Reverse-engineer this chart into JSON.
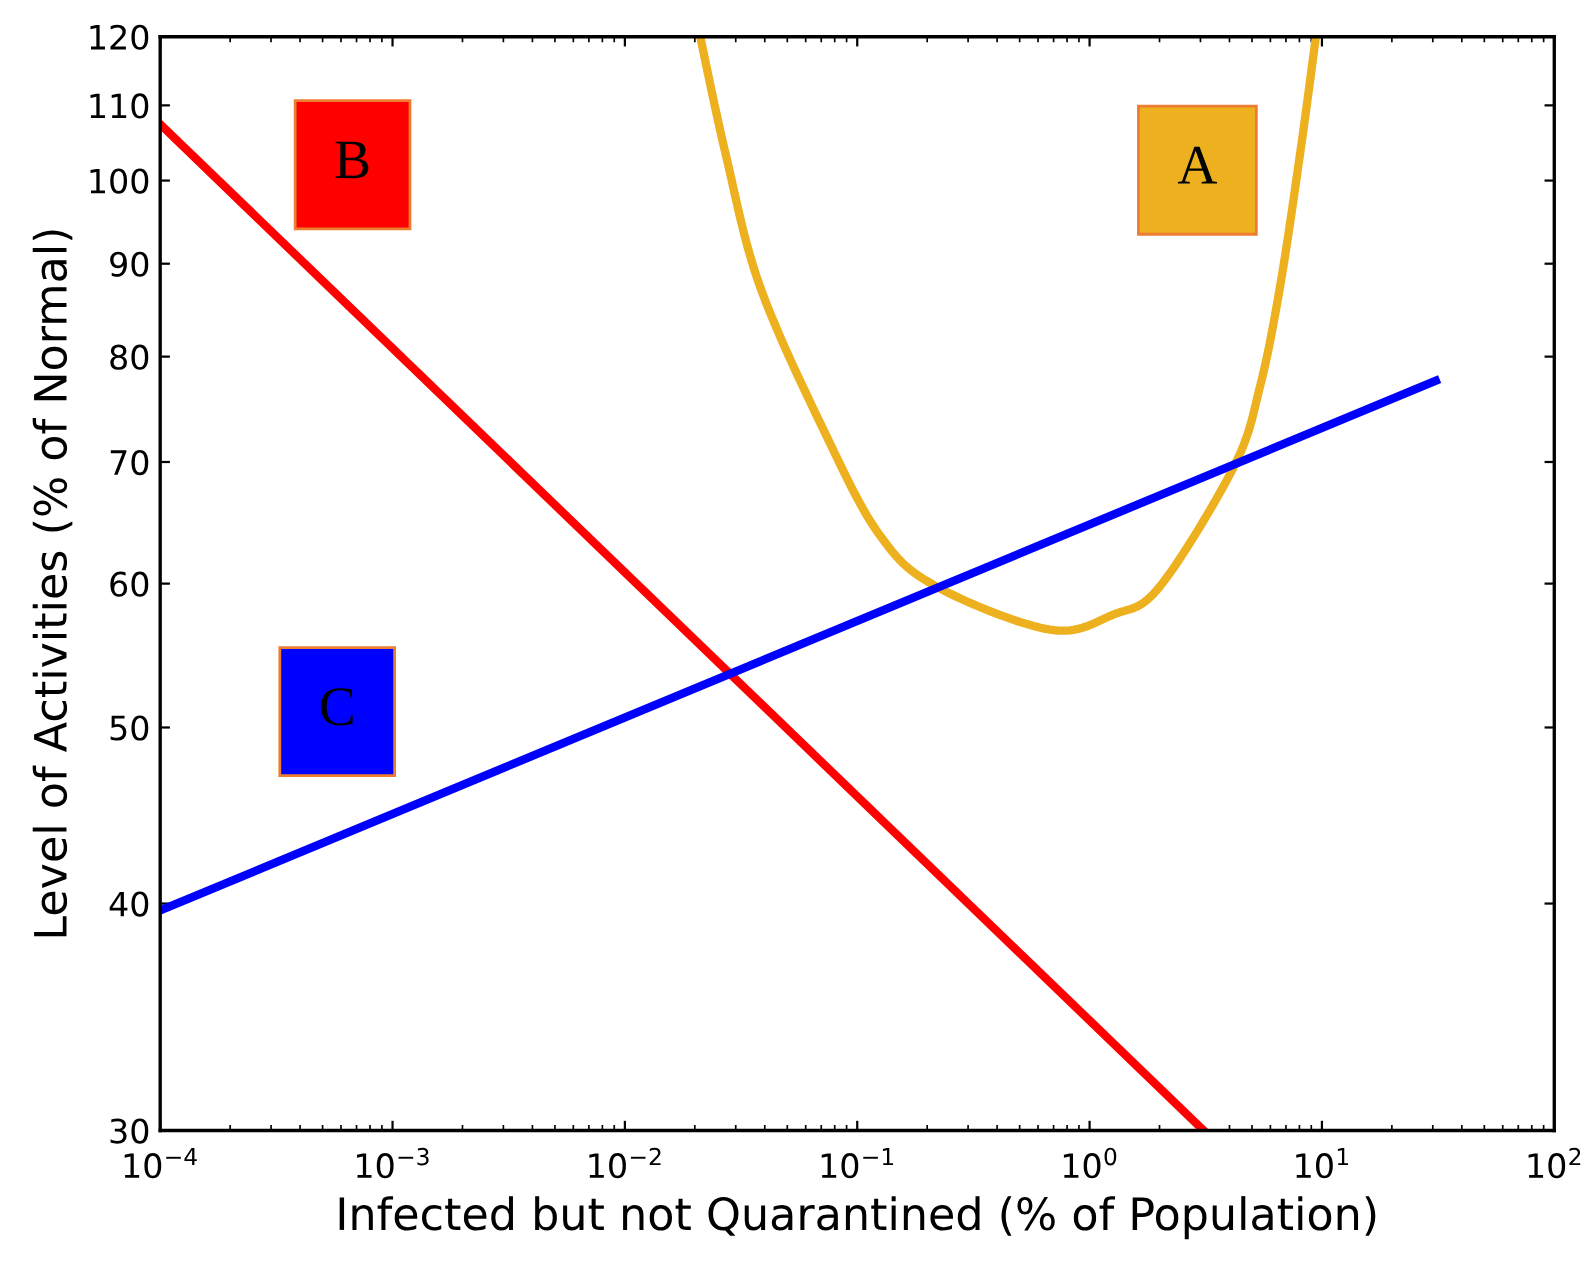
{
  "chart_data": {
    "type": "line",
    "xlabel": "Infected but not Quarantined (% of Population)",
    "ylabel": "Level of Activities (% of Normal)",
    "log": "xy",
    "grid": false,
    "legend": false,
    "marker": "none",
    "line_style": "solid",
    "xlim": [
      0.0001,
      100
    ],
    "ylim": [
      30,
      120
    ],
    "xticks": [
      {
        "value": 0.0001,
        "label": "10$^{−4}$"
      },
      {
        "value": 0.001,
        "label": "10$^{−3}$"
      },
      {
        "value": 0.01,
        "label": "10$^{−2}$"
      },
      {
        "value": 0.1,
        "label": "10$^{−1}$"
      },
      {
        "value": 1,
        "label": "10$^{0}$"
      },
      {
        "value": 10,
        "label": "10$^{1}$"
      },
      {
        "value": 100,
        "label": "10$^{2}$"
      }
    ],
    "yticks": [
      30,
      40,
      50,
      60,
      70,
      80,
      90,
      100,
      110,
      120
    ],
    "series": [
      {
        "name": "A",
        "color": "#edb120",
        "x": [
          0.0211,
          0.0272,
          0.0382,
          0.0735,
          0.125,
          0.218,
          0.676,
          1.27,
          2.01,
          4.18,
          5.41,
          6.6,
          8.04,
          9.42
        ],
        "values": [
          120,
          103.3,
          87.4,
          72.4,
          63.8,
          59.8,
          56.6,
          57.7,
          59.8,
          69.6,
          77.0,
          87.4,
          103.3,
          120
        ]
      },
      {
        "name": "B",
        "color": "#ff0000",
        "x": [
          0.0001,
          3.1
        ],
        "values": [
          107.4,
          30
        ]
      },
      {
        "name": "C",
        "color": "#0000ff",
        "x": [
          0.0001,
          30.9
        ],
        "values": [
          39.65,
          77.6
        ]
      }
    ]
  }
}
